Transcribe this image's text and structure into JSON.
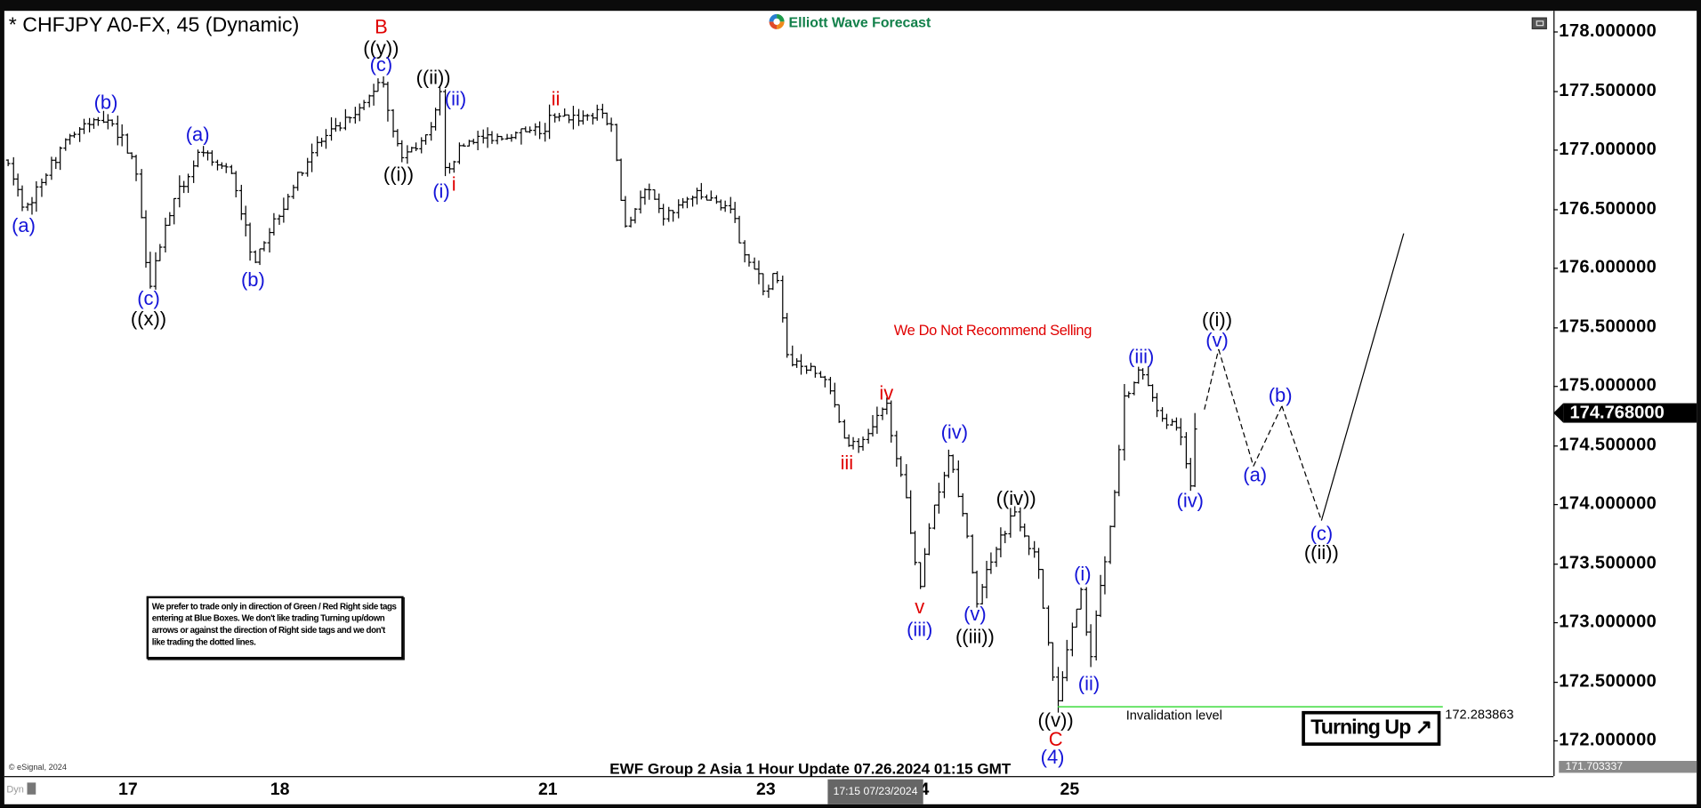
{
  "header": {
    "title": "* CHFJPY A0-FX, 45 (Dynamic)",
    "logo_text": "Elliott Wave Forecast"
  },
  "annotations": {
    "no_sell": "We Do Not Recommend Selling",
    "notice": "We prefer to trade only in direction of Green / Red Right side tags entering at Blue Boxes. We don't like trading Turning up/down arrows or against the direction of Right side tags and we don't like trading the dotted lines.",
    "footer": "EWF Group 2 Asia 1 Hour Update 07.26.2024 01:15 GMT",
    "invalidation_label": "Invalidation level",
    "invalidation_value": "172.283863",
    "turning_label": "Turning Up",
    "turning_arrow": "↗",
    "copyright": "© eSignal, 2024",
    "dyn": "Dyn",
    "crosshair_time": "17:15 07/23/2024"
  },
  "colors": {
    "blue": "#1414d8",
    "red": "#e00000",
    "black": "#000000",
    "invalidation": "#3ddc3d"
  },
  "chart_data": {
    "type": "ohlc-bar",
    "symbol": "CHFJPY",
    "interval": "45 min",
    "ylim": [
      171.7,
      178.15
    ],
    "y_ticks": [
      "178.000000",
      "177.500000",
      "177.000000",
      "176.500000",
      "176.000000",
      "175.500000",
      "175.000000",
      "174.500000",
      "174.000000",
      "173.500000",
      "173.000000",
      "172.500000",
      "172.000000"
    ],
    "x_ticks": [
      "17",
      "18",
      "21",
      "23",
      "4",
      "25"
    ],
    "last_price": "174.768000",
    "axis_low": "171.703337",
    "invalidation_level": 172.283863,
    "price_path": [
      [
        "07-16 05:00",
        176.89
      ],
      [
        "07-16 07:30",
        176.48
      ],
      [
        "07-16 14:00",
        177.09
      ],
      [
        "07-16 20:30",
        177.3
      ],
      [
        "07-17 01:00",
        176.89
      ],
      [
        "07-17 03:15",
        175.86
      ],
      [
        "07-17 06:15",
        176.43
      ],
      [
        "07-17 11:00",
        176.96
      ],
      [
        "07-17 16:30",
        176.8
      ],
      [
        "07-17 19:30",
        176.06
      ],
      [
        "07-18 00:15",
        176.52
      ],
      [
        "07-18 05:30",
        177.03
      ],
      [
        "07-18 12:15",
        177.3
      ],
      [
        "07-18 16:00",
        177.62
      ],
      [
        "07-18 18:15",
        177.07
      ],
      [
        "07-18 19:15",
        176.94
      ],
      [
        "07-18 23:30",
        177.12
      ],
      [
        "07-19 01:15",
        177.46
      ],
      [
        "07-19 02:00",
        176.8
      ],
      [
        "07-19 05:30",
        177.07
      ],
      [
        "07-19 15:45",
        177.15
      ],
      [
        "07-21 15:45",
        177.26
      ],
      [
        "07-21 23:00",
        177.3
      ],
      [
        "07-22 00:45",
        177.15
      ],
      [
        "07-22 02:30",
        176.34
      ],
      [
        "07-22 06:00",
        176.66
      ],
      [
        "07-22 08:30",
        176.43
      ],
      [
        "07-22 13:30",
        176.61
      ],
      [
        "07-22 18:45",
        176.52
      ],
      [
        "07-22 22:15",
        176.06
      ],
      [
        "07-23 00:45",
        175.79
      ],
      [
        "07-23 02:30",
        175.97
      ],
      [
        "07-23 04:15",
        175.24
      ],
      [
        "07-23 10:15",
        175.06
      ],
      [
        "07-23 13:45",
        174.5
      ],
      [
        "07-23 17:00",
        174.55
      ],
      [
        "07-23 20:00",
        174.83
      ],
      [
        "07-23 22:15",
        174.23
      ],
      [
        "07-24 01:15",
        173.31
      ],
      [
        "07-24 03:15",
        173.95
      ],
      [
        "07-24 06:00",
        174.46
      ],
      [
        "07-24 08:30",
        173.77
      ],
      [
        "07-24 10:15",
        173.17
      ],
      [
        "07-24 12:45",
        173.59
      ],
      [
        "07-24 16:15",
        173.95
      ],
      [
        "07-24 19:45",
        173.5
      ],
      [
        "07-24 21:30",
        172.85
      ],
      [
        "07-24 23:00",
        172.28
      ],
      [
        "07-25 00:45",
        172.85
      ],
      [
        "07-25 03:00",
        173.27
      ],
      [
        "07-25 04:00",
        172.62
      ],
      [
        "07-25 06:00",
        173.4
      ],
      [
        "07-25 07:45",
        173.95
      ],
      [
        "07-25 09:30",
        174.87
      ],
      [
        "07-25 12:15",
        175.15
      ],
      [
        "07-25 14:30",
        174.78
      ],
      [
        "07-25 18:00",
        174.64
      ],
      [
        "07-25 20:00",
        174.14
      ],
      [
        "07-25 21:00",
        174.77
      ]
    ],
    "projection": [
      {
        "at": "07-25 22:15",
        "price": 174.8,
        "style": "dashed"
      },
      {
        "at": "07-26 00:30",
        "price": 175.31,
        "style": "dashed"
      },
      {
        "at": "07-26 06:00",
        "price": 174.32,
        "style": "dashed"
      },
      {
        "at": "07-26 10:30",
        "price": 174.83,
        "style": "dashed"
      },
      {
        "at": "07-26 16:45",
        "price": 173.86,
        "style": "solid"
      },
      {
        "at": "07-27 05:45",
        "price": 176.29,
        "style": "solid"
      }
    ],
    "wave_labels": [
      {
        "text": "B",
        "color": "red",
        "at": "07-18 16:00",
        "price": 178.04
      },
      {
        "text": "((y))",
        "color": "black",
        "at": "07-18 16:00",
        "price": 177.86
      },
      {
        "text": "(c)",
        "color": "blue",
        "at": "07-18 16:00",
        "price": 177.72
      },
      {
        "text": "((ii))",
        "color": "black",
        "at": "07-19 00:15",
        "price": 177.61
      },
      {
        "text": "(ii)",
        "color": "blue",
        "at": "07-19 03:45",
        "price": 177.43
      },
      {
        "text": "(b)",
        "color": "blue",
        "at": "07-16 20:30",
        "price": 177.4
      },
      {
        "text": "(a)",
        "color": "blue",
        "at": "07-17 11:00",
        "price": 177.13
      },
      {
        "text": "ii",
        "color": "red",
        "at": "07-21 15:45",
        "price": 177.43
      },
      {
        "text": "(a)",
        "color": "blue",
        "at": "07-16 07:30",
        "price": 176.36
      },
      {
        "text": "((i))",
        "color": "black",
        "at": "07-18 18:45",
        "price": 176.79
      },
      {
        "text": "(i)",
        "color": "blue",
        "at": "07-19 01:30",
        "price": 176.65
      },
      {
        "text": "i",
        "color": "red",
        "at": "07-19 03:30",
        "price": 176.71
      },
      {
        "text": "(c)",
        "color": "blue",
        "at": "07-17 03:15",
        "price": 175.74
      },
      {
        "text": "((x))",
        "color": "black",
        "at": "07-17 03:15",
        "price": 175.57
      },
      {
        "text": "(b)",
        "color": "blue",
        "at": "07-17 19:45",
        "price": 175.9
      },
      {
        "text": "iv",
        "color": "red",
        "at": "07-23 20:00",
        "price": 174.94
      },
      {
        "text": "iii",
        "color": "red",
        "at": "07-23 13:45",
        "price": 174.35
      },
      {
        "text": "(iv)",
        "color": "blue",
        "at": "07-24 06:45",
        "price": 174.61
      },
      {
        "text": "v",
        "color": "red",
        "at": "07-24 01:15",
        "price": 173.13
      },
      {
        "text": "(iii)",
        "color": "blue",
        "at": "07-24 01:15",
        "price": 172.94
      },
      {
        "text": "((iv))",
        "color": "black",
        "at": "07-24 16:30",
        "price": 174.05
      },
      {
        "text": "(v)",
        "color": "blue",
        "at": "07-24 10:00",
        "price": 173.07
      },
      {
        "text": "((iii))",
        "color": "black",
        "at": "07-24 10:00",
        "price": 172.88
      },
      {
        "text": "(i)",
        "color": "blue",
        "at": "07-25 03:00",
        "price": 173.41
      },
      {
        "text": "(ii)",
        "color": "blue",
        "at": "07-25 04:00",
        "price": 172.48
      },
      {
        "text": "((v))",
        "color": "black",
        "at": "07-24 22:45",
        "price": 172.17
      },
      {
        "text": "C",
        "color": "red",
        "at": "07-24 22:45",
        "price": 172.01
      },
      {
        "text": "(4)",
        "color": "blue",
        "at": "07-24 22:15",
        "price": 171.86
      },
      {
        "text": "(iii)",
        "color": "blue",
        "at": "07-25 12:15",
        "price": 175.25
      },
      {
        "text": "(iv)",
        "color": "blue",
        "at": "07-25 20:00",
        "price": 174.03
      },
      {
        "text": "((i))",
        "color": "black",
        "at": "07-26 00:15",
        "price": 175.56
      },
      {
        "text": "(v)",
        "color": "blue",
        "at": "07-26 00:15",
        "price": 175.39
      },
      {
        "text": "(a)",
        "color": "blue",
        "at": "07-26 06:15",
        "price": 174.25
      },
      {
        "text": "(b)",
        "color": "blue",
        "at": "07-26 10:15",
        "price": 174.92
      },
      {
        "text": "(c)",
        "color": "blue",
        "at": "07-26 16:45",
        "price": 173.75
      },
      {
        "text": "((ii))",
        "color": "black",
        "at": "07-26 16:45",
        "price": 173.59
      }
    ]
  }
}
